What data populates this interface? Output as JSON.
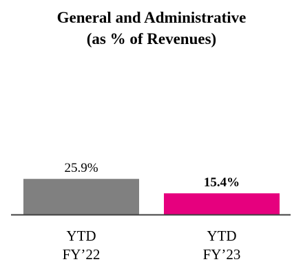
{
  "chart_data": {
    "type": "bar",
    "title": [
      "General and Administrative",
      "(as % of Revenues)"
    ],
    "categories": [
      [
        "YTD",
        "FY’22"
      ],
      [
        "YTD",
        "FY’23"
      ]
    ],
    "values": [
      25.9,
      15.4
    ],
    "data_labels": [
      "25.9%",
      "15.4%"
    ],
    "data_label_bold": [
      false,
      true
    ],
    "colors": [
      "#808080",
      "#e6007e"
    ],
    "ylim": [
      0,
      30
    ],
    "grid": false,
    "legend": "none"
  }
}
